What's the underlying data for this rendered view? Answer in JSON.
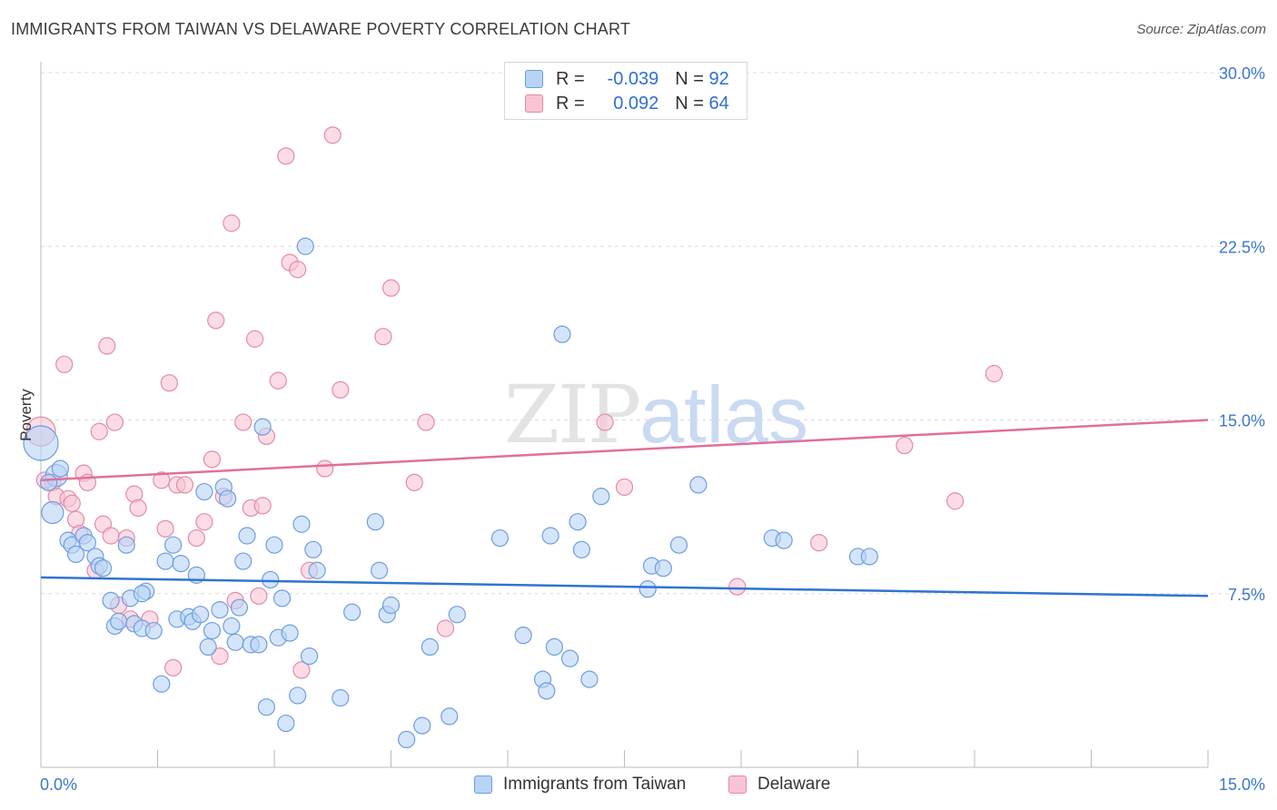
{
  "title": "IMMIGRANTS FROM TAIWAN VS DELAWARE POVERTY CORRELATION CHART",
  "source": "Source: ZipAtlas.com",
  "watermark": {
    "zip": "ZIP",
    "atlas": "atlas"
  },
  "legend": {
    "rows": [
      {
        "r_label": "R =",
        "r_value": "-0.039",
        "n_label": "N =",
        "n_value": "92"
      },
      {
        "r_label": "R =",
        "r_value": "0.092",
        "n_label": "N =",
        "n_value": "64"
      }
    ],
    "bottom": [
      "Immigrants from Taiwan",
      "Delaware"
    ]
  },
  "colors": {
    "blue": "#2f74d0",
    "pink": "#e0709a",
    "blue_fill": "#b9d3f5",
    "pink_fill": "#f8c4d4"
  },
  "chart_data": {
    "type": "scatter",
    "title": "IMMIGRANTS FROM TAIWAN VS DELAWARE POVERTY CORRELATION CHART",
    "xlabel": "",
    "ylabel": "Poverty",
    "xlim": [
      0,
      15
    ],
    "ylim": [
      0,
      30
    ],
    "x_tick_labels": [
      "0.0%",
      "15.0%"
    ],
    "y_ticks": [
      7.5,
      15.0,
      22.5,
      30.0
    ],
    "y_tick_labels": [
      "7.5%",
      "15.0%",
      "22.5%",
      "30.0%"
    ],
    "series": [
      {
        "name": "Immigrants from Taiwan",
        "color": "#2f74d0",
        "trend": {
          "x": [
            0,
            15
          ],
          "y": [
            8.2,
            7.4
          ]
        },
        "points": [
          [
            0.0,
            14.0
          ],
          [
            0.2,
            12.6
          ],
          [
            0.25,
            12.9
          ],
          [
            0.15,
            11.0
          ],
          [
            0.35,
            9.8
          ],
          [
            0.4,
            9.6
          ],
          [
            0.45,
            9.2
          ],
          [
            0.55,
            10.0
          ],
          [
            0.6,
            9.7
          ],
          [
            0.7,
            9.1
          ],
          [
            0.75,
            8.7
          ],
          [
            0.8,
            8.6
          ],
          [
            1.1,
            9.6
          ],
          [
            0.9,
            7.2
          ],
          [
            0.95,
            6.1
          ],
          [
            1.0,
            6.3
          ],
          [
            1.15,
            7.3
          ],
          [
            1.2,
            6.2
          ],
          [
            1.3,
            6.0
          ],
          [
            1.35,
            7.6
          ],
          [
            1.3,
            7.5
          ],
          [
            1.45,
            5.9
          ],
          [
            1.55,
            3.6
          ],
          [
            1.6,
            8.9
          ],
          [
            1.7,
            9.6
          ],
          [
            1.75,
            6.4
          ],
          [
            1.8,
            8.8
          ],
          [
            1.9,
            6.5
          ],
          [
            1.95,
            6.3
          ],
          [
            2.0,
            8.3
          ],
          [
            2.05,
            6.6
          ],
          [
            2.1,
            11.9
          ],
          [
            2.15,
            5.2
          ],
          [
            2.2,
            5.9
          ],
          [
            2.3,
            6.8
          ],
          [
            2.35,
            12.1
          ],
          [
            2.4,
            11.6
          ],
          [
            2.45,
            6.1
          ],
          [
            2.5,
            5.4
          ],
          [
            2.55,
            6.9
          ],
          [
            2.6,
            8.9
          ],
          [
            2.65,
            10.0
          ],
          [
            2.7,
            5.3
          ],
          [
            2.8,
            5.3
          ],
          [
            2.85,
            14.7
          ],
          [
            2.9,
            2.6
          ],
          [
            2.95,
            8.1
          ],
          [
            3.0,
            9.6
          ],
          [
            3.05,
            5.6
          ],
          [
            3.1,
            7.3
          ],
          [
            3.15,
            1.9
          ],
          [
            3.2,
            5.8
          ],
          [
            3.3,
            3.1
          ],
          [
            3.35,
            10.5
          ],
          [
            3.4,
            22.5
          ],
          [
            3.45,
            4.8
          ],
          [
            3.5,
            9.4
          ],
          [
            3.55,
            8.5
          ],
          [
            3.85,
            3.0
          ],
          [
            4.0,
            6.7
          ],
          [
            4.3,
            10.6
          ],
          [
            4.35,
            8.5
          ],
          [
            4.45,
            6.6
          ],
          [
            4.5,
            7.0
          ],
          [
            4.7,
            1.2
          ],
          [
            4.9,
            1.8
          ],
          [
            5.0,
            5.2
          ],
          [
            5.25,
            2.2
          ],
          [
            5.35,
            6.6
          ],
          [
            5.9,
            9.9
          ],
          [
            6.2,
            5.7
          ],
          [
            6.45,
            3.8
          ],
          [
            6.5,
            3.3
          ],
          [
            6.55,
            10.0
          ],
          [
            6.6,
            5.2
          ],
          [
            6.7,
            18.7
          ],
          [
            6.8,
            4.7
          ],
          [
            6.9,
            10.6
          ],
          [
            6.95,
            9.4
          ],
          [
            7.05,
            3.8
          ],
          [
            7.2,
            11.7
          ],
          [
            7.8,
            7.7
          ],
          [
            7.85,
            8.7
          ],
          [
            8.0,
            8.6
          ],
          [
            8.2,
            9.6
          ],
          [
            8.45,
            12.2
          ],
          [
            9.4,
            9.9
          ],
          [
            9.55,
            9.8
          ],
          [
            10.5,
            9.1
          ],
          [
            10.65,
            9.1
          ],
          [
            0.1,
            12.3
          ]
        ]
      },
      {
        "name": "Delaware",
        "color": "#e0709a",
        "trend": {
          "x": [
            0,
            15
          ],
          "y": [
            12.4,
            15.0
          ]
        },
        "points": [
          [
            0.0,
            14.5
          ],
          [
            0.15,
            12.3
          ],
          [
            0.2,
            11.7
          ],
          [
            0.3,
            17.4
          ],
          [
            0.35,
            11.6
          ],
          [
            0.4,
            11.4
          ],
          [
            0.45,
            10.7
          ],
          [
            0.5,
            10.1
          ],
          [
            0.55,
            12.7
          ],
          [
            0.6,
            12.3
          ],
          [
            0.7,
            8.5
          ],
          [
            0.75,
            14.5
          ],
          [
            0.8,
            10.5
          ],
          [
            0.85,
            18.2
          ],
          [
            0.9,
            10.0
          ],
          [
            0.95,
            14.9
          ],
          [
            1.0,
            7.0
          ],
          [
            1.1,
            9.9
          ],
          [
            1.15,
            6.4
          ],
          [
            1.2,
            11.8
          ],
          [
            1.25,
            11.2
          ],
          [
            1.4,
            6.4
          ],
          [
            1.55,
            12.4
          ],
          [
            1.6,
            10.3
          ],
          [
            1.65,
            16.6
          ],
          [
            1.7,
            4.3
          ],
          [
            1.75,
            12.2
          ],
          [
            1.85,
            12.2
          ],
          [
            2.0,
            9.9
          ],
          [
            2.1,
            10.6
          ],
          [
            2.2,
            13.3
          ],
          [
            2.25,
            19.3
          ],
          [
            2.3,
            4.8
          ],
          [
            2.35,
            11.7
          ],
          [
            2.45,
            23.5
          ],
          [
            2.5,
            7.2
          ],
          [
            2.6,
            14.9
          ],
          [
            2.7,
            11.2
          ],
          [
            2.75,
            18.5
          ],
          [
            2.8,
            7.4
          ],
          [
            2.85,
            11.3
          ],
          [
            2.9,
            14.3
          ],
          [
            3.05,
            16.7
          ],
          [
            3.15,
            26.4
          ],
          [
            3.2,
            21.8
          ],
          [
            3.3,
            21.5
          ],
          [
            3.35,
            4.2
          ],
          [
            3.45,
            8.5
          ],
          [
            3.65,
            12.9
          ],
          [
            3.75,
            27.3
          ],
          [
            3.85,
            16.3
          ],
          [
            4.4,
            18.6
          ],
          [
            4.5,
            20.7
          ],
          [
            4.8,
            12.3
          ],
          [
            4.95,
            14.9
          ],
          [
            5.2,
            6.0
          ],
          [
            7.25,
            14.9
          ],
          [
            7.5,
            12.1
          ],
          [
            8.95,
            7.8
          ],
          [
            10.0,
            9.7
          ],
          [
            11.1,
            13.9
          ],
          [
            11.75,
            11.5
          ],
          [
            12.25,
            17.0
          ],
          [
            0.05,
            12.4
          ]
        ]
      }
    ]
  }
}
